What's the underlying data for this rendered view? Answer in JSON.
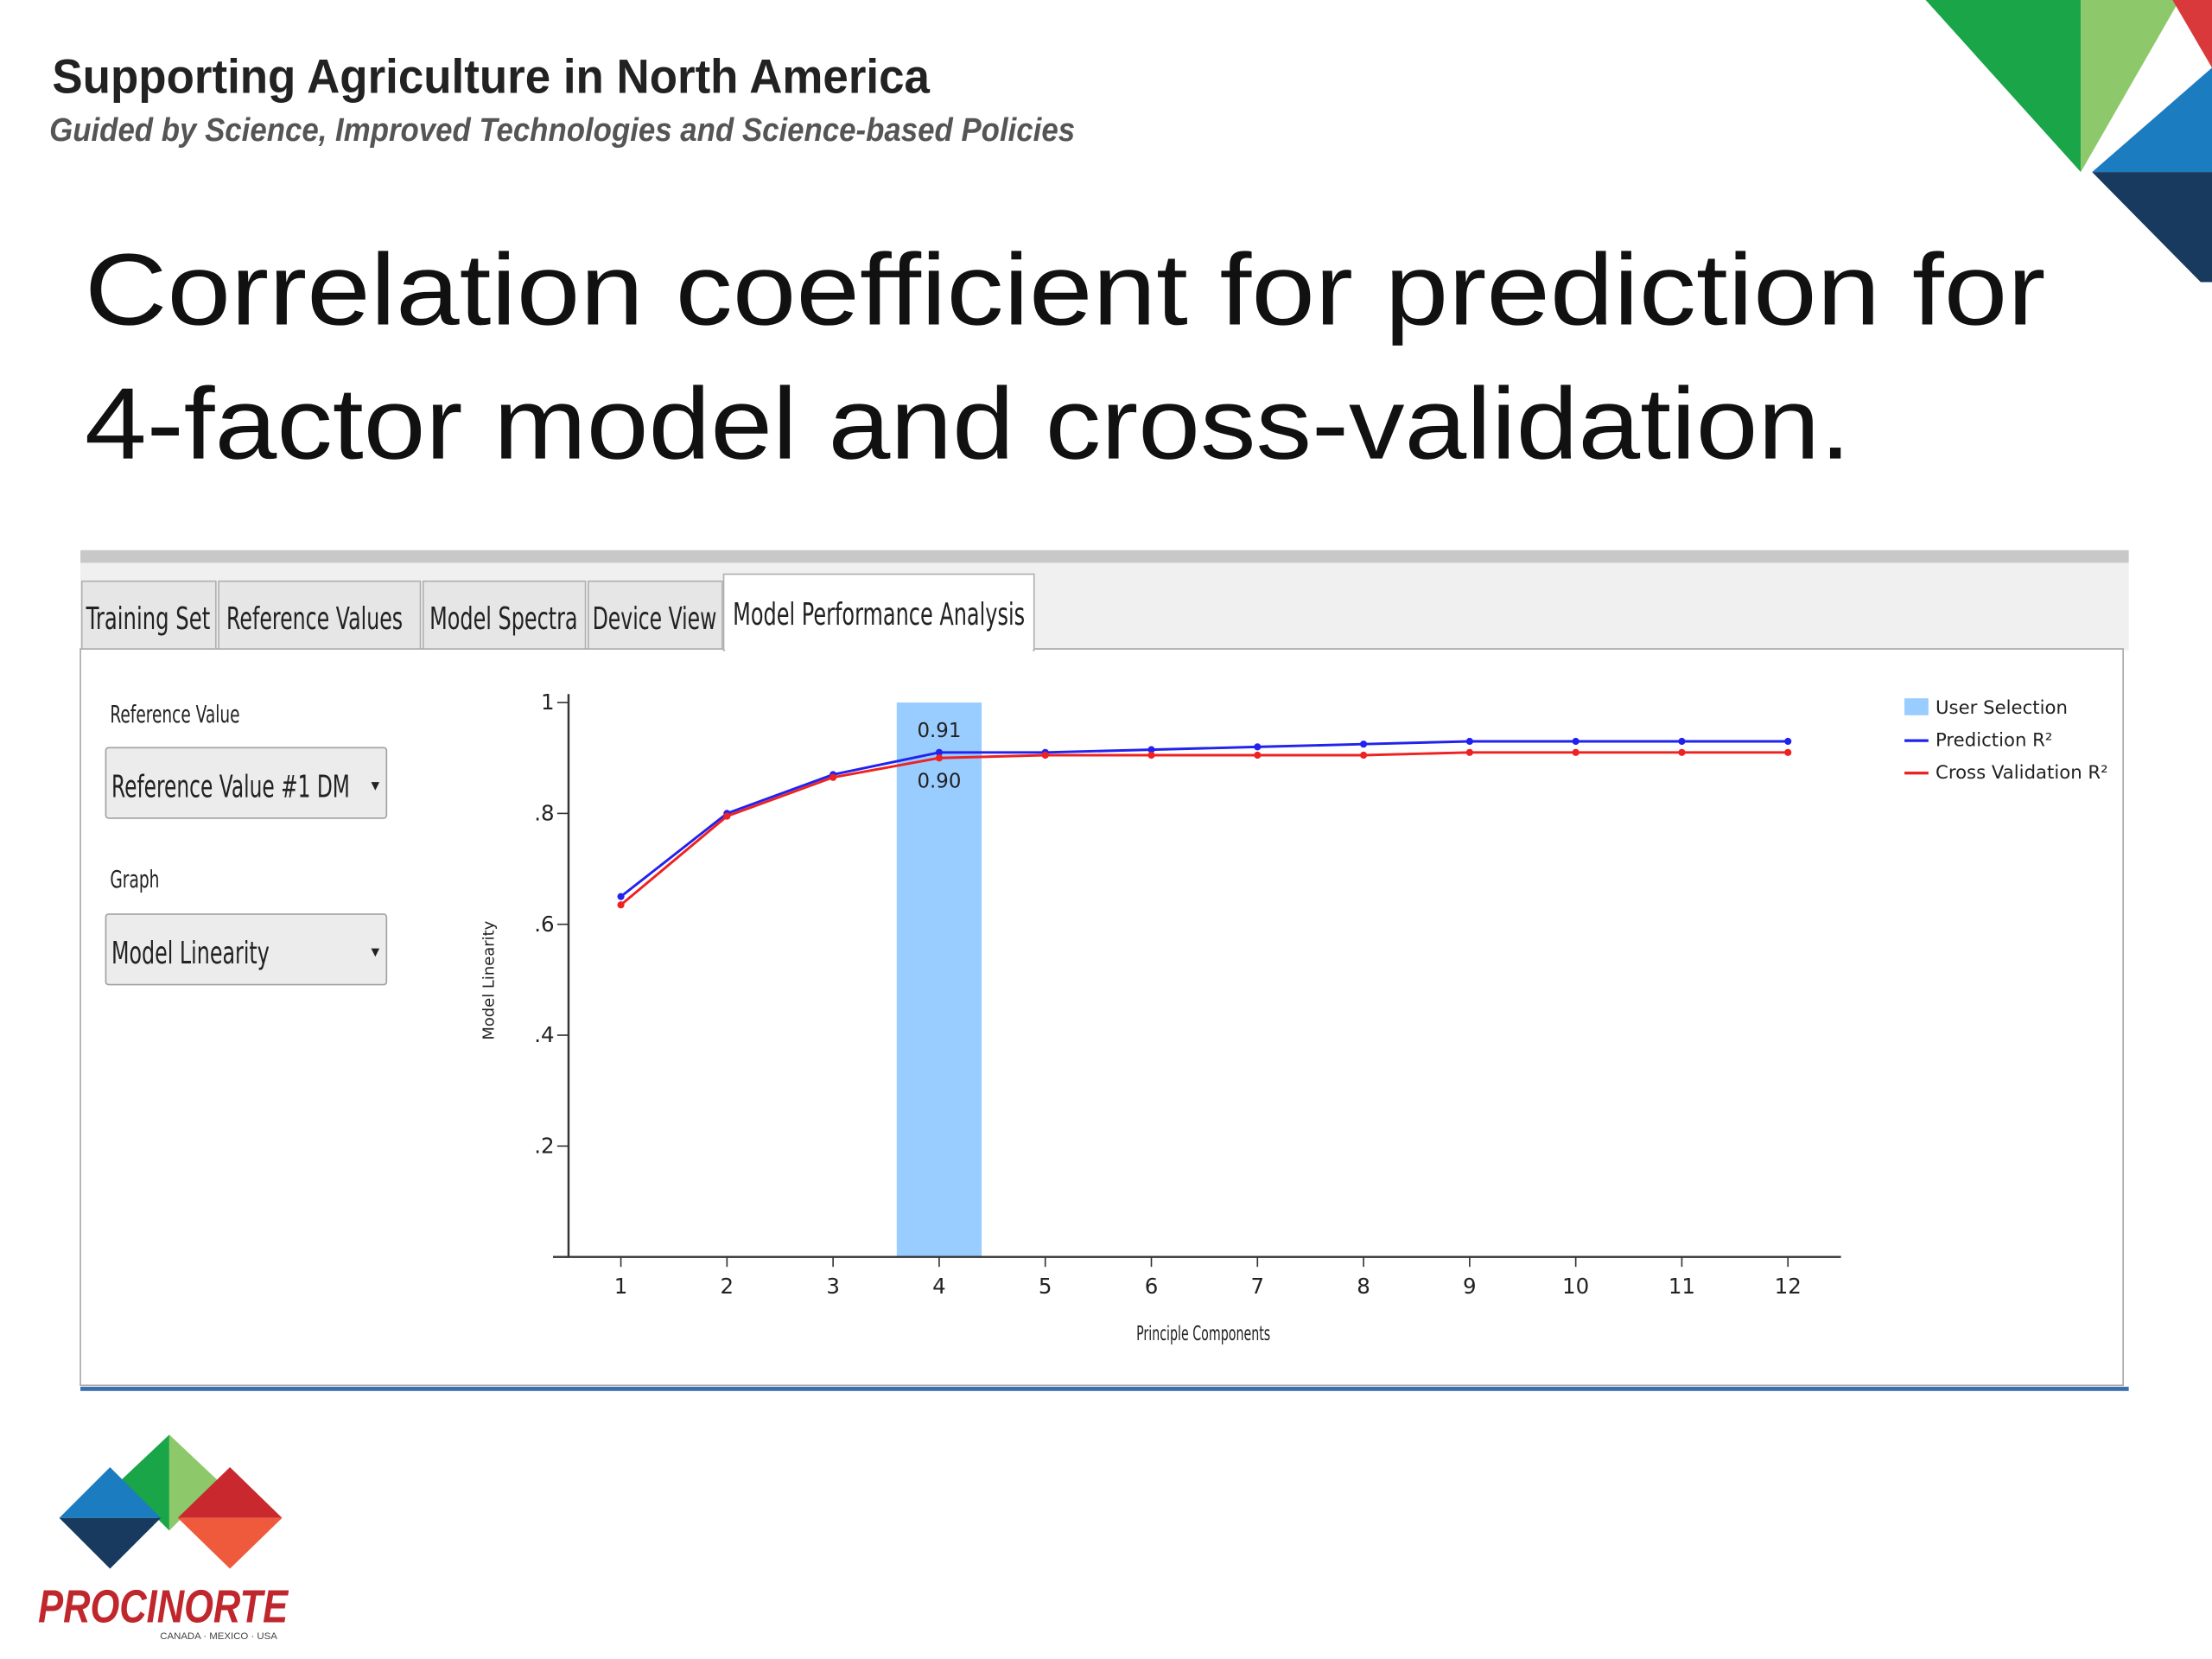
{
  "header": {
    "title": "Supporting Agriculture in North America",
    "subtitle": "Guided by Science, Improved Technologies and Science-based Policies"
  },
  "slide_title": [
    "Correlation coefficient for prediction for",
    "4-factor model and cross-validation."
  ],
  "tabs": [
    "Training Set",
    "Reference Values",
    "Model Spectra",
    "Device View",
    "Model Performance Analysis"
  ],
  "controls": {
    "reference_label": "Reference Value",
    "reference_value": "Reference Value #1 DM",
    "graph_label": "Graph",
    "graph_value": "Model Linearity"
  },
  "chart_data": {
    "type": "line",
    "x_label": "Principle Components",
    "y_label": "Model Linearity",
    "x": [
      1,
      2,
      3,
      4,
      5,
      6,
      7,
      8,
      9,
      10,
      11,
      12
    ],
    "xlim": [
      0.4,
      12.5
    ],
    "xticks": [
      1,
      2,
      3,
      4,
      5,
      6,
      7,
      8,
      9,
      10,
      11,
      12
    ],
    "ylim": [
      0,
      1
    ],
    "yticks": [
      {
        "value": 0.2,
        "label": ".2"
      },
      {
        "value": 0.4,
        "label": ".4"
      },
      {
        "value": 0.6,
        "label": ".6"
      },
      {
        "value": 0.8,
        "label": ".8"
      },
      1
    ],
    "selection": {
      "name": "User Selection",
      "color": "#99ccff",
      "x": 4
    },
    "series": [
      {
        "name": "Prediction R²",
        "color": "#2222ee",
        "values": [
          0.65,
          0.8,
          0.87,
          0.91,
          0.91,
          0.915,
          0.92,
          0.925,
          0.93,
          0.93,
          0.93,
          0.93
        ],
        "value_labels": [
          null,
          null,
          null,
          "0.91",
          null,
          null,
          null,
          null,
          null,
          null,
          null,
          null
        ]
      },
      {
        "name": "Cross Validation R²",
        "color": "#ee2222",
        "values": [
          0.635,
          0.795,
          0.865,
          0.9,
          0.905,
          0.905,
          0.905,
          0.905,
          0.91,
          0.91,
          0.91,
          0.91
        ],
        "value_labels": [
          null,
          null,
          null,
          "0.90",
          null,
          null,
          null,
          null,
          null,
          null,
          null,
          null
        ]
      }
    ]
  },
  "logo": {
    "name": "PROCINORTE",
    "countries": "CANADA · MEXICO · USA"
  }
}
